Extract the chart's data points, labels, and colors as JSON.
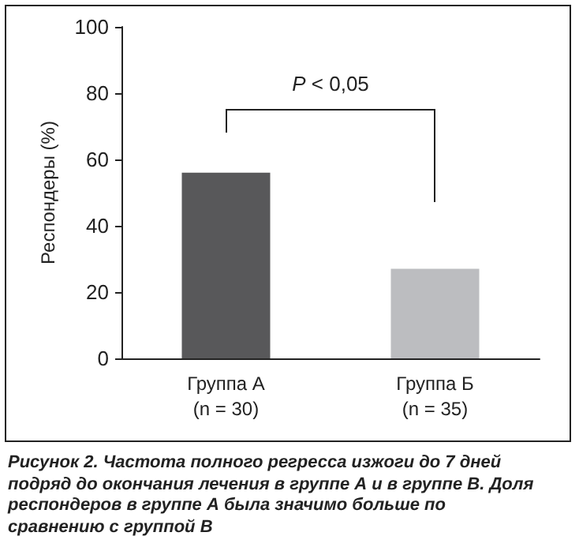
{
  "chart_data": {
    "type": "bar",
    "ylabel": "Респондеры (%)",
    "categories": [
      "Группа А\n(n = 30)",
      "Группа Б\n(n = 35)"
    ],
    "values": [
      56,
      27
    ],
    "colors": [
      "#58585a",
      "#bcbdc0"
    ],
    "ylim": [
      0,
      100
    ],
    "yticks": [
      0,
      20,
      40,
      60,
      80,
      100
    ],
    "grid": false,
    "annotations": [
      "P < 0,05",
      "Рисунок 2. Частота полного регресса изжоги до 7 дней подряд до окончания лечения в группе А и в группе В. Доля респондеров в группе А была значимо больше по сравнению с группой В"
    ]
  }
}
